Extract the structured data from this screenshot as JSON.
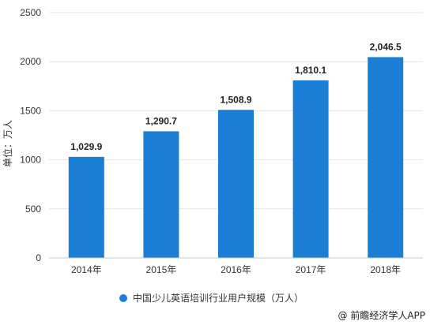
{
  "chart_data": {
    "type": "bar",
    "categories": [
      "2014年",
      "2015年",
      "2016年",
      "2017年",
      "2018年"
    ],
    "series": [
      {
        "name": "中国少儿英语培训行业用户规模（万人）",
        "values": [
          1029.9,
          1290.7,
          1508.9,
          1810.1,
          2046.5
        ],
        "data_labels": [
          "1,029.9",
          "1,290.7",
          "1,508.9",
          "1,810.1",
          "2,046.5"
        ],
        "color": "#1a7fd4"
      }
    ],
    "ylabel": "单位：万人",
    "ylim": [
      0,
      2500
    ],
    "yticks": [
      0,
      500,
      1000,
      1500,
      2000,
      2500
    ],
    "grid": true,
    "legend_position": "bottom"
  },
  "footer": {
    "credit": "@ 前瞻经济学人APP"
  }
}
